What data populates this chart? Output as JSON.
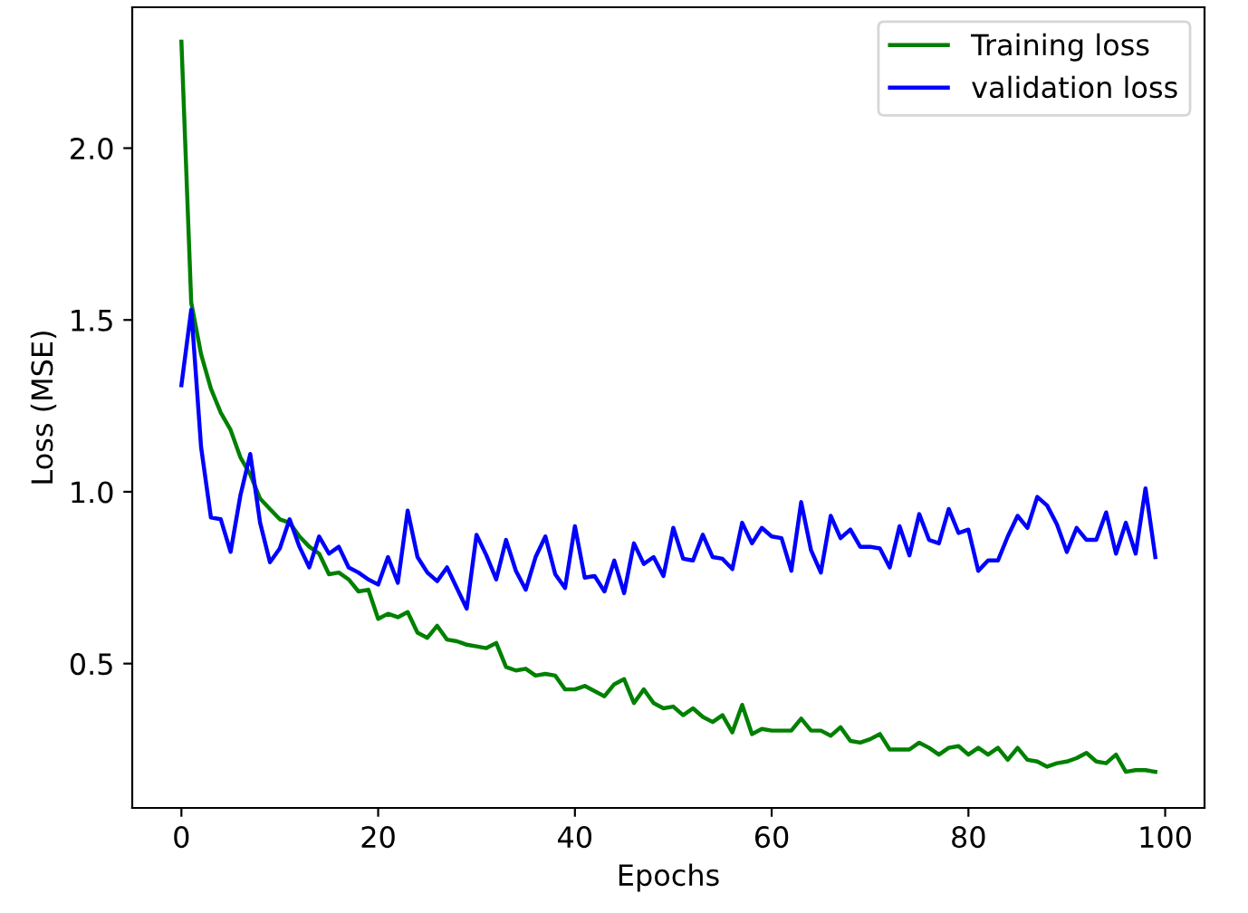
{
  "chart_data": {
    "type": "line",
    "xlabel": "Epochs",
    "ylabel": "Loss (MSE)",
    "x": [
      0,
      1,
      2,
      3,
      4,
      5,
      6,
      7,
      8,
      9,
      10,
      11,
      12,
      13,
      14,
      15,
      16,
      17,
      18,
      19,
      20,
      21,
      22,
      23,
      24,
      25,
      26,
      27,
      28,
      29,
      30,
      31,
      32,
      33,
      34,
      35,
      36,
      37,
      38,
      39,
      40,
      41,
      42,
      43,
      44,
      45,
      46,
      47,
      48,
      49,
      50,
      51,
      52,
      53,
      54,
      55,
      56,
      57,
      58,
      59,
      60,
      61,
      62,
      63,
      64,
      65,
      66,
      67,
      68,
      69,
      70,
      71,
      72,
      73,
      74,
      75,
      76,
      77,
      78,
      79,
      80,
      81,
      82,
      83,
      84,
      85,
      86,
      87,
      88,
      89,
      90,
      91,
      92,
      93,
      94,
      95,
      96,
      97,
      98,
      99
    ],
    "series": [
      {
        "name": "Training loss",
        "color": "#008000",
        "values": [
          2.31,
          1.55,
          1.4,
          1.3,
          1.23,
          1.18,
          1.1,
          1.05,
          0.98,
          0.95,
          0.92,
          0.91,
          0.87,
          0.84,
          0.82,
          0.76,
          0.765,
          0.745,
          0.71,
          0.715,
          0.63,
          0.645,
          0.635,
          0.65,
          0.59,
          0.575,
          0.61,
          0.57,
          0.565,
          0.555,
          0.55,
          0.545,
          0.56,
          0.49,
          0.48,
          0.485,
          0.465,
          0.47,
          0.465,
          0.425,
          0.425,
          0.435,
          0.42,
          0.405,
          0.44,
          0.455,
          0.385,
          0.425,
          0.385,
          0.37,
          0.375,
          0.35,
          0.37,
          0.345,
          0.33,
          0.35,
          0.3,
          0.38,
          0.295,
          0.31,
          0.305,
          0.305,
          0.305,
          0.34,
          0.305,
          0.305,
          0.29,
          0.315,
          0.275,
          0.27,
          0.28,
          0.295,
          0.25,
          0.25,
          0.25,
          0.27,
          0.255,
          0.235,
          0.255,
          0.26,
          0.235,
          0.255,
          0.235,
          0.255,
          0.22,
          0.255,
          0.22,
          0.215,
          0.2,
          0.21,
          0.215,
          0.225,
          0.24,
          0.215,
          0.21,
          0.235,
          0.185,
          0.19,
          0.19,
          0.185
        ]
      },
      {
        "name": "validation loss",
        "color": "#0000ff",
        "values": [
          1.31,
          1.53,
          1.13,
          0.925,
          0.92,
          0.825,
          0.99,
          1.11,
          0.91,
          0.795,
          0.835,
          0.92,
          0.84,
          0.78,
          0.87,
          0.82,
          0.84,
          0.78,
          0.765,
          0.745,
          0.73,
          0.81,
          0.735,
          0.945,
          0.81,
          0.765,
          0.74,
          0.78,
          0.72,
          0.66,
          0.875,
          0.815,
          0.745,
          0.86,
          0.77,
          0.715,
          0.81,
          0.87,
          0.76,
          0.72,
          0.9,
          0.75,
          0.755,
          0.71,
          0.8,
          0.705,
          0.85,
          0.79,
          0.81,
          0.755,
          0.895,
          0.805,
          0.8,
          0.875,
          0.81,
          0.805,
          0.775,
          0.91,
          0.85,
          0.895,
          0.87,
          0.865,
          0.77,
          0.97,
          0.83,
          0.765,
          0.93,
          0.865,
          0.89,
          0.84,
          0.84,
          0.835,
          0.78,
          0.9,
          0.815,
          0.935,
          0.86,
          0.85,
          0.95,
          0.88,
          0.89,
          0.77,
          0.8,
          0.8,
          0.87,
          0.93,
          0.895,
          0.985,
          0.96,
          0.905,
          0.825,
          0.895,
          0.86,
          0.86,
          0.94,
          0.82,
          0.91,
          0.82,
          1.01,
          0.81
        ]
      }
    ],
    "xlim": [
      -5,
      104
    ],
    "ylim": [
      0.08,
      2.41
    ],
    "xticks": [
      0,
      20,
      40,
      60,
      80,
      100
    ],
    "yticks": [
      0.5,
      {
        "value": 1,
        "label": "1.0"
      },
      1.5,
      {
        "value": 2,
        "label": "2.0"
      }
    ],
    "legend": "top right",
    "grid": false
  }
}
